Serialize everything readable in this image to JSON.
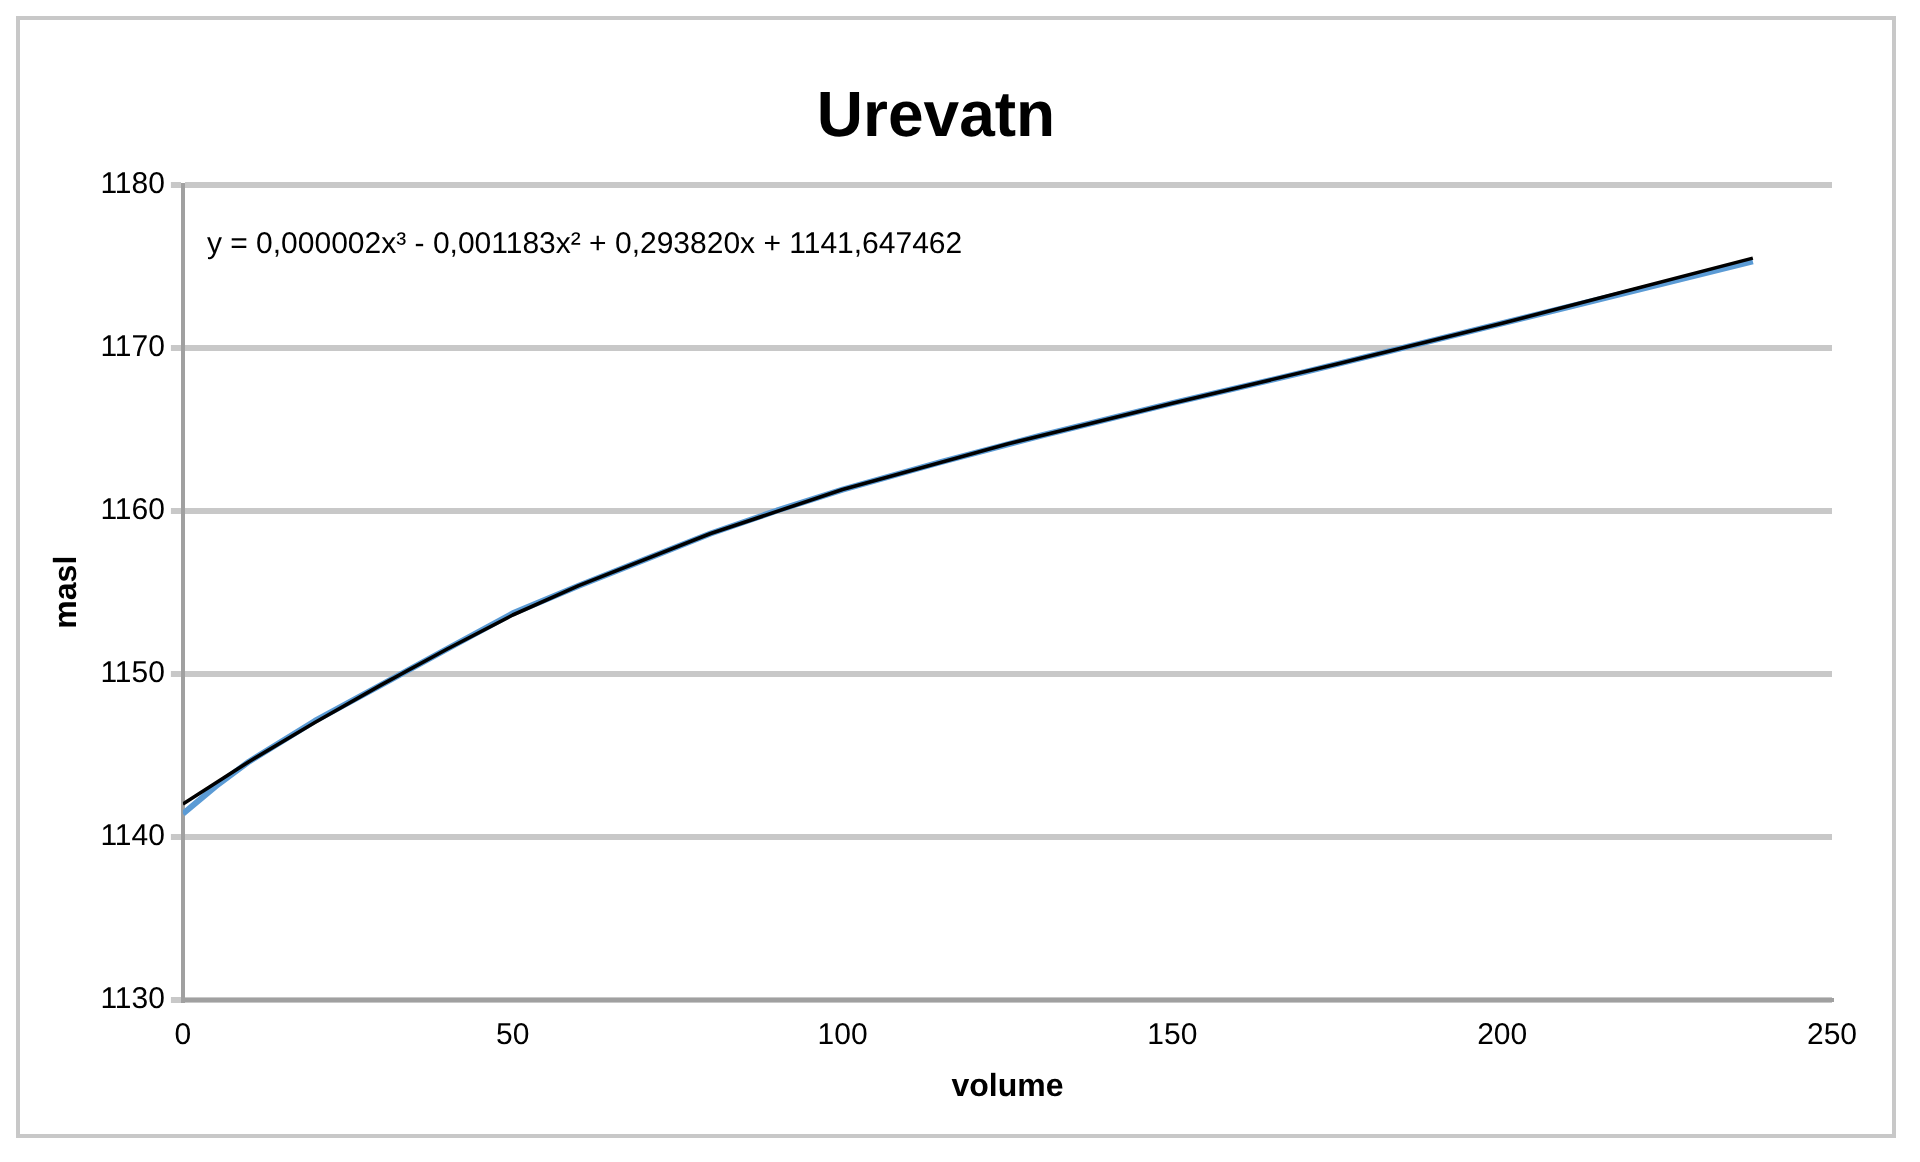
{
  "chart_data": {
    "type": "line",
    "title": "Urevatn",
    "xlabel": "volume",
    "ylabel": "masl",
    "annotations": [
      "y = 0,000002x³ - 0,001183x² + 0,293820x + 1141,647462"
    ],
    "xlim": [
      0,
      250
    ],
    "xticks": [
      0,
      50,
      100,
      150,
      200,
      250
    ],
    "ylim": [
      1130,
      1180
    ],
    "yticks": [
      1130,
      1140,
      1150,
      1160,
      1170,
      1180
    ],
    "grid": "y",
    "legend": false,
    "marker": "none",
    "line_style": "solid",
    "series": [
      {
        "type": "line",
        "color": "#5b9bd5",
        "x": [
          0,
          5,
          10,
          20,
          30,
          40,
          50,
          60,
          70,
          80,
          90,
          100,
          115,
          130,
          150,
          170,
          190,
          210,
          225,
          238
        ],
        "values": [
          1141.4,
          1143.1,
          1144.6,
          1147.1,
          1149.3,
          1151.5,
          1153.7,
          1155.4,
          1157.0,
          1158.6,
          1160.0,
          1161.3,
          1163.0,
          1164.6,
          1166.6,
          1168.5,
          1170.5,
          1172.5,
          1174.0,
          1175.3
        ]
      },
      {
        "type": "line",
        "color": "#000000",
        "x": [
          0,
          10,
          20,
          30,
          40,
          50,
          60,
          80,
          100,
          125,
          150,
          175,
          200,
          220,
          238
        ],
        "values": [
          1142.0,
          1144.6,
          1147.0,
          1149.3,
          1151.5,
          1153.6,
          1155.4,
          1158.6,
          1161.3,
          1164.1,
          1166.6,
          1169.0,
          1171.5,
          1173.6,
          1175.5
        ]
      }
    ]
  }
}
